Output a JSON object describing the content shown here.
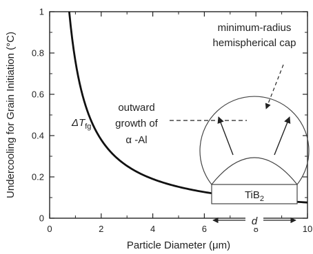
{
  "chart_data": {
    "type": "line",
    "xlabel": "Particle Diameter (μm)",
    "ylabel": "Undercooling for Grain Initiation (°C)",
    "xlim": [
      0,
      10
    ],
    "ylim": [
      0,
      1
    ],
    "x_ticks": [
      "0",
      "2",
      "4",
      "6",
      "8",
      "10"
    ],
    "y_ticks": [
      "0",
      "0.2",
      "0.4",
      "0.6",
      "0.8",
      "1"
    ],
    "grid": false,
    "series": [
      {
        "name": "ΔTfg",
        "relation": "ΔT = k / d",
        "k": 0.76,
        "x": [
          0.76,
          1.0,
          1.5,
          2.0,
          3.0,
          4.0,
          5.0,
          6.0,
          7.0,
          8.0,
          9.0,
          10.0
        ],
        "y": [
          1.0,
          0.76,
          0.507,
          0.38,
          0.253,
          0.19,
          0.152,
          0.127,
          0.109,
          0.095,
          0.084,
          0.076
        ]
      }
    ],
    "annotations": {
      "curve_label_main": "ΔT",
      "curve_label_sub": "fg",
      "cap_label_line1": "minimum-radius",
      "cap_label_line2": "hemispherical cap",
      "growth_line1": "outward",
      "growth_line2": "growth of",
      "growth_line3": "α -Al",
      "particle_label_main": "TiB",
      "particle_label_sub": "2",
      "dimension_label": "d"
    }
  }
}
